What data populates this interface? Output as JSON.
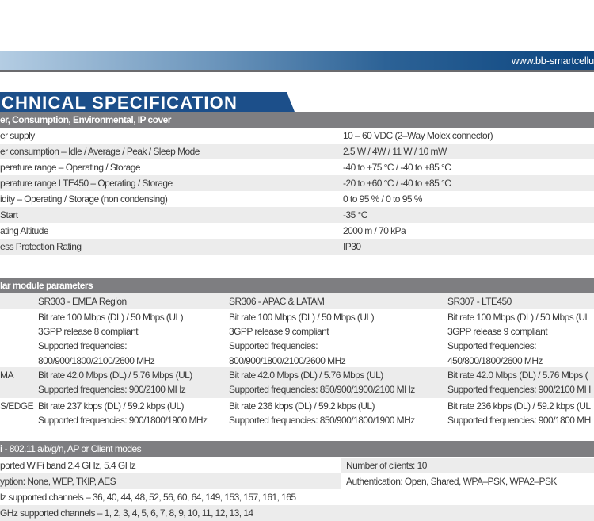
{
  "header": {
    "url": "www.bb-smartcellu",
    "title": "ECHNICAL SPECIFICATION",
    "brand_color": "#1c4f8a"
  },
  "power": {
    "heading": "er, Consumption, Environmental, IP cover",
    "rows": [
      {
        "label": "er supply",
        "value": "10 – 60 VDC (2–Way Molex connector)"
      },
      {
        "label": "er consumption – Idle / Average / Peak / Sleep Mode",
        "value": "2.5 W / 4W / 11 W / 10 mW"
      },
      {
        "label": "perature range – Operating  / Storage",
        "value": "-40 to +75 °C / -40 to +85 °C"
      },
      {
        "label": "perature range LTE450 – Operating  / Storage",
        "value": "-20 to +60 °C / -40 to +85 °C"
      },
      {
        "label": "idity – Operating / Storage (non condensing)",
        "value": "0 to 95 % / 0 to 95 %"
      },
      {
        "label": " Start",
        "value": "-35 °C"
      },
      {
        "label": "ating Altitude",
        "value": "2000 m / 70 kPa"
      },
      {
        "label": "ess Protection Rating",
        "value": "IP30"
      }
    ]
  },
  "cellular": {
    "heading": "lar module parameters",
    "models": [
      "SR303 - EMEA Region",
      "SR306 - APAC & LATAM",
      "SR307 - LTE450"
    ],
    "rows": [
      {
        "label": "",
        "cells": [
          [
            "Bit rate 100 Mbps (DL) / 50 Mbps (UL)",
            "3GPP release 8 compliant",
            "Supported frequencies:",
            "800/900/1800/2100/2600 MHz"
          ],
          [
            "Bit rate 100 Mbps (DL) / 50 Mbps (UL)",
            "3GPP release 9 compliant",
            "Supported frequencies:",
            "800/900/1800/2100/2600 MHz"
          ],
          [
            "Bit rate 100 Mbps (DL) / 50 Mbps (UL",
            "3GPP release 9 compliant",
            "Supported frequencies:",
            "450/800/1800/2600 MHz"
          ]
        ]
      },
      {
        "label": "MA",
        "cells": [
          [
            "Bit rate 42.0 Mbps (DL) / 5.76 Mbps (UL)",
            "Supported frequencies: 900/2100 MHz"
          ],
          [
            "Bit rate 42.0 Mbps (DL) / 5.76 Mbps (UL)",
            "Supported frequencies: 850/900/1900/2100 MHz"
          ],
          [
            "Bit rate 42.0 Mbps (DL) / 5.76 Mbps (",
            "Supported frequencies: 900/2100 MH"
          ]
        ]
      },
      {
        "label": "S/EDGE",
        "cells": [
          [
            "Bit rate 237 kbps (DL) / 59.2 kbps (UL)",
            "Supported frequencies: 900/1800/1900 MHz"
          ],
          [
            "Bit rate 236 kbps (DL) / 59.2 kbps (UL)",
            "Supported frequencies: 850/900/1800/1900 MHz"
          ],
          [
            "Bit rate 236 kbps (DL) / 59.2 kbps (UL",
            "Supported frequencies: 900/1800 MH"
          ]
        ]
      }
    ]
  },
  "wifi": {
    "heading_bold": "i",
    "heading": " - 802.11 a/b/g/n, AP or Client modes",
    "rows": [
      {
        "left": "ported WiFi band 2.4 GHz, 5.4 GHz",
        "right": "Number of clients: 10"
      },
      {
        "left": "yption: None, WEP, TKIP, AES",
        "right": "Authentication: Open, Shared, WPA–PSK, WPA2–PSK"
      },
      {
        "left": "lz supported channels – 36, 40, 44, 48, 52, 56, 60, 64, 149, 153, 157, 161, 165",
        "right": ""
      },
      {
        "left": "GHz supported channels – 1, 2, 3, 4, 5, 6, 7, 8, 9, 10, 11, 12, 13, 14",
        "right": ""
      }
    ]
  }
}
